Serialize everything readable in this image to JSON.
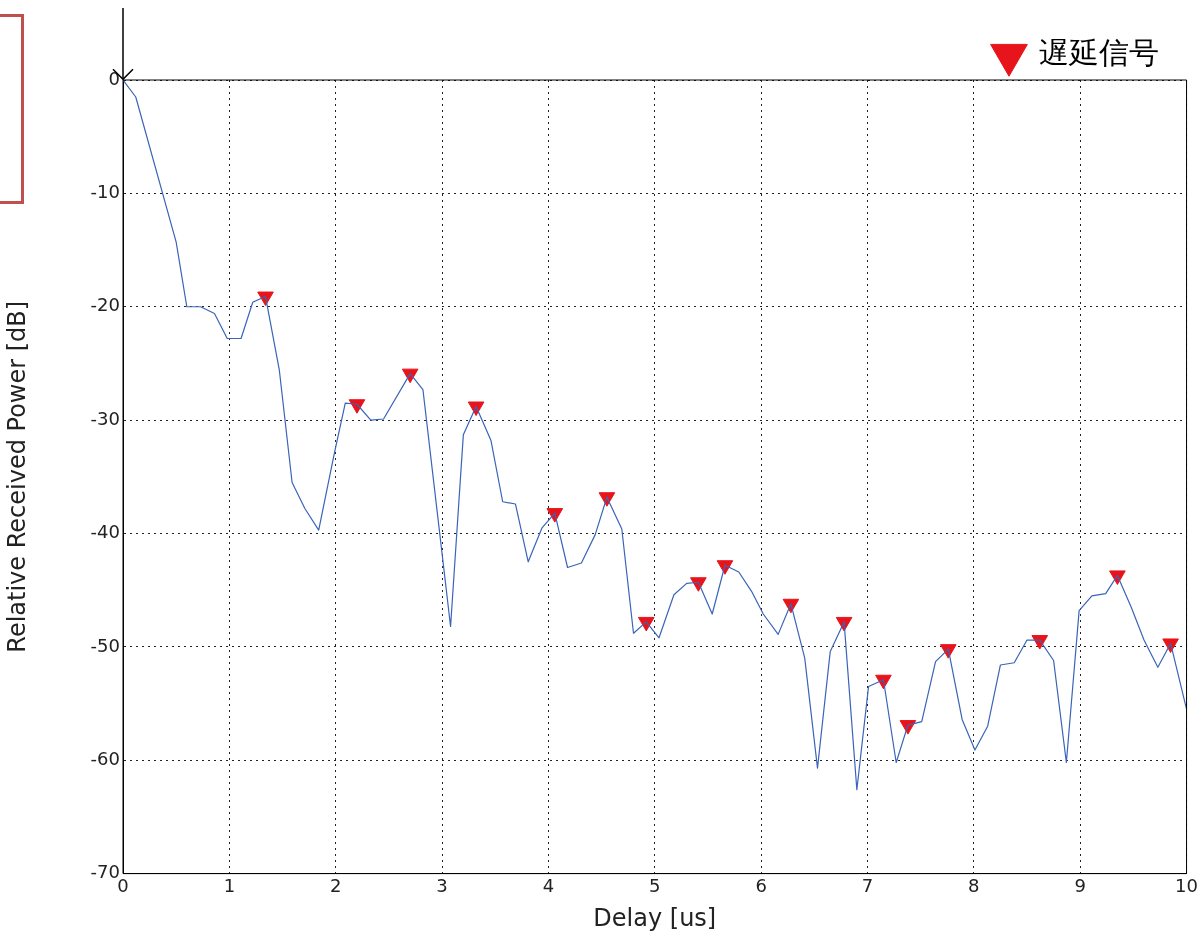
{
  "chart_data": {
    "type": "line",
    "xlabel": "Delay [us]",
    "ylabel": "Relative Received Power [dB]",
    "xlim": [
      0,
      10
    ],
    "xticks": [
      0,
      1,
      2,
      3,
      4,
      5,
      6,
      7,
      8,
      9,
      10
    ],
    "ylim": [
      -70,
      0
    ],
    "yticks": [
      -70,
      -60,
      -50,
      -40,
      -30,
      -20,
      -10,
      0
    ],
    "grid": true,
    "legend": "top right",
    "series": [
      {
        "type": "line",
        "color": "#3a64b8",
        "marker": "none",
        "x": [
          0,
          0.12,
          0.5,
          0.6,
          0.73,
          0.86,
          0.98,
          1.11,
          1.22,
          1.34,
          1.47,
          1.59,
          1.71,
          1.84,
          1.99,
          2.09,
          2.2,
          2.33,
          2.45,
          2.7,
          2.82,
          3.08,
          3.2,
          3.32,
          3.46,
          3.57,
          3.69,
          3.81,
          3.94,
          4.06,
          4.18,
          4.31,
          4.44,
          4.55,
          4.69,
          4.8,
          4.92,
          5.04,
          5.18,
          5.3,
          5.41,
          5.54,
          5.66,
          5.79,
          5.91,
          6.02,
          6.16,
          6.28,
          6.41,
          6.53,
          6.65,
          6.78,
          6.9,
          7.01,
          7.15,
          7.27,
          7.38,
          7.51,
          7.64,
          7.76,
          7.89,
          8.01,
          8.13,
          8.25,
          8.38,
          8.5,
          8.62,
          8.75,
          8.87,
          8.99,
          9.11,
          9.24,
          9.35,
          9.48,
          9.6,
          9.73,
          9.85,
          10
        ],
        "values": [
          0,
          -1.5,
          -14.3,
          -20,
          -20,
          -20.6,
          -22.8,
          -22.8,
          -19.6,
          -19.1,
          -25.6,
          -35.5,
          -37.8,
          -39.7,
          -32.8,
          -28.5,
          -28.6,
          -30,
          -29.9,
          -25.9,
          -27.3,
          -48.2,
          -31.3,
          -28.8,
          -31.8,
          -37.2,
          -37.4,
          -42.5,
          -39.5,
          -38.2,
          -43,
          -42.6,
          -40.1,
          -36.8,
          -39.6,
          -48.8,
          -47.8,
          -49.2,
          -45.4,
          -44.4,
          -44.3,
          -47.1,
          -42.8,
          -43.4,
          -45.1,
          -47.1,
          -48.9,
          -46.2,
          -51,
          -60.7,
          -50.4,
          -47.8,
          -62.6,
          -53.5,
          -52.9,
          -60.2,
          -56.9,
          -56.6,
          -51.3,
          -50.2,
          -56.4,
          -59.1,
          -57,
          -51.6,
          -51.4,
          -49.4,
          -49.4,
          -51.2,
          -60.2,
          -46.8,
          -45.5,
          -45.3,
          -43.7,
          -46.5,
          -49.4,
          -51.8,
          -49.7,
          -55.5
        ]
      },
      {
        "type": "scatter",
        "name": "遅延信号",
        "color": "#e8141c",
        "marker": "triangle",
        "x": [
          1.34,
          2.2,
          2.7,
          3.32,
          4.06,
          4.55,
          4.92,
          5.41,
          5.66,
          6.28,
          6.78,
          7.15,
          7.38,
          7.76,
          8.62,
          9.35,
          9.85
        ],
        "values": [
          -19.1,
          -28.6,
          -25.9,
          -28.8,
          -38.2,
          -36.8,
          -47.8,
          -44.3,
          -42.8,
          -46.2,
          -47.8,
          -52.9,
          -56.9,
          -50.2,
          -49.4,
          -43.7,
          -49.7
        ]
      }
    ]
  }
}
